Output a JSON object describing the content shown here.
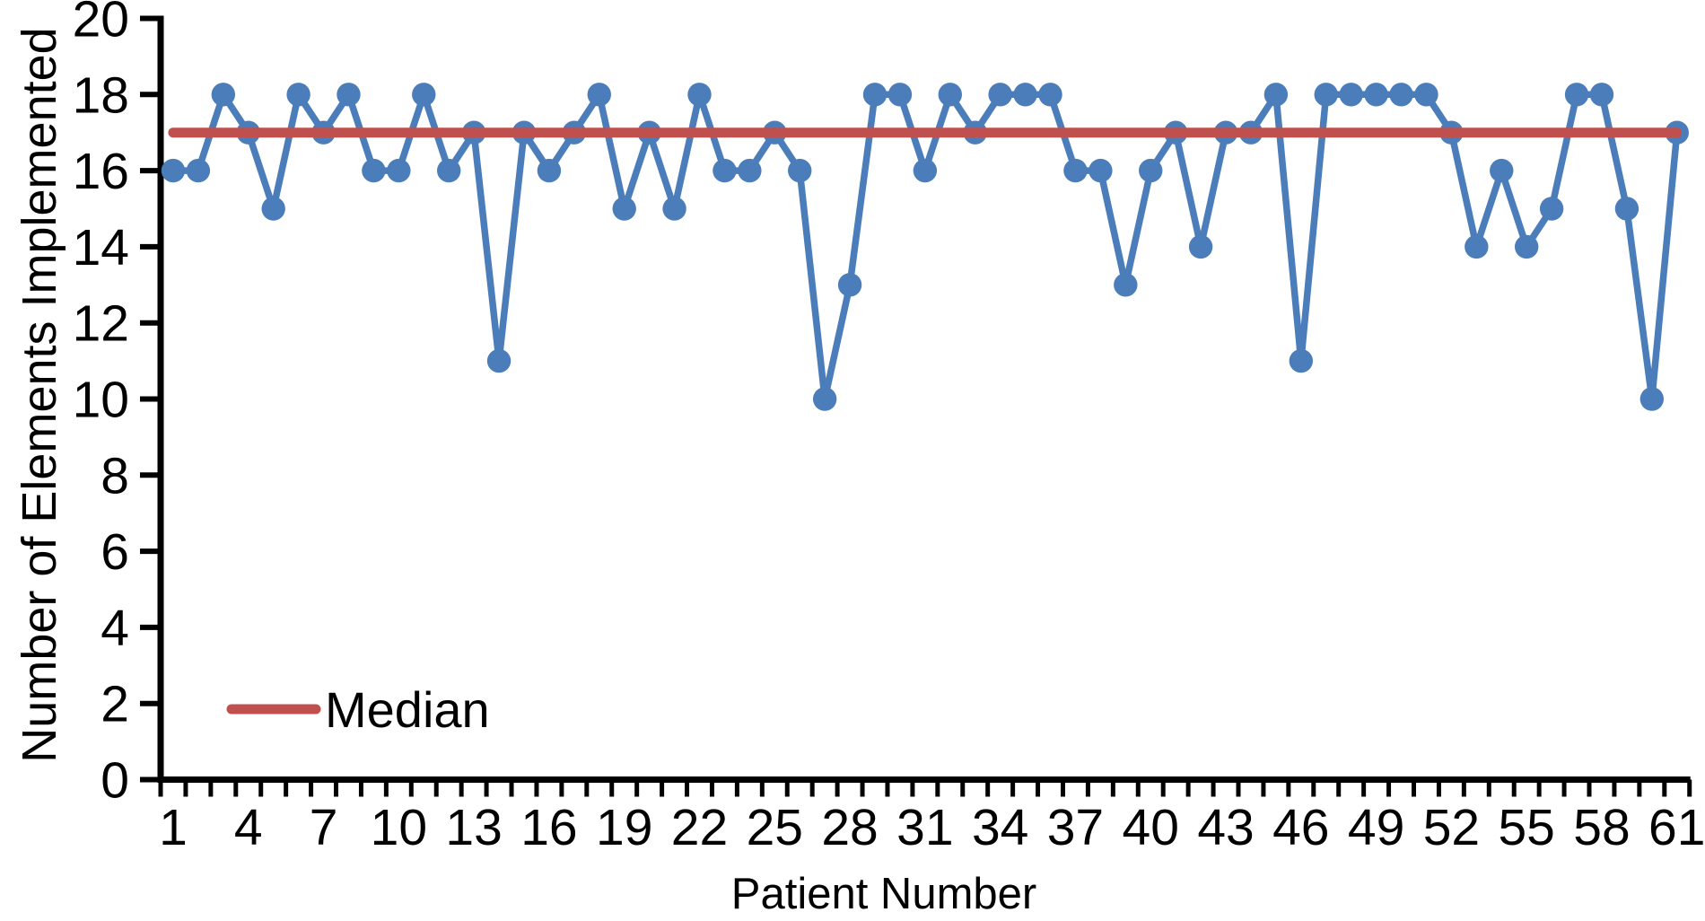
{
  "chart_data": {
    "type": "line",
    "title": "",
    "xlabel": "Patient Number",
    "ylabel": "Number of Elements Implemented",
    "categories": [
      1,
      2,
      3,
      4,
      5,
      6,
      7,
      8,
      9,
      10,
      11,
      12,
      13,
      14,
      15,
      16,
      17,
      18,
      19,
      20,
      21,
      22,
      23,
      24,
      25,
      26,
      27,
      28,
      29,
      30,
      31,
      32,
      33,
      34,
      35,
      36,
      37,
      38,
      39,
      40,
      41,
      42,
      43,
      44,
      45,
      46,
      47,
      48,
      49,
      50,
      51,
      52,
      53,
      54,
      55,
      56,
      57,
      58,
      59,
      60,
      61
    ],
    "series": [
      {
        "color": "#4a7db9",
        "marker": "circle",
        "values": [
          16,
          16,
          18,
          17,
          15,
          18,
          17,
          18,
          16,
          16,
          18,
          16,
          17,
          11,
          17,
          16,
          17,
          18,
          15,
          17,
          15,
          18,
          16,
          16,
          17,
          16,
          10,
          13,
          18,
          18,
          16,
          18,
          17,
          18,
          18,
          18,
          16,
          16,
          13,
          16,
          17,
          14,
          17,
          17,
          18,
          11,
          18,
          18,
          18,
          18,
          18,
          17,
          14,
          16,
          14,
          15,
          18,
          18,
          15,
          10,
          17
        ]
      }
    ],
    "median_line": {
      "label": "Median",
      "value": 17,
      "color": "#c0504d"
    },
    "ylim": [
      0,
      20
    ],
    "ytick_step": 2,
    "yticks": [
      0,
      2,
      4,
      6,
      8,
      10,
      12,
      14,
      16,
      18,
      20
    ],
    "xtick_labels": [
      1,
      4,
      7,
      10,
      13,
      16,
      19,
      22,
      25,
      28,
      31,
      34,
      37,
      40,
      43,
      46,
      49,
      52,
      55,
      58,
      61
    ],
    "grid": false,
    "legend": {
      "position": "inside-bottom-left",
      "entries": [
        "Median"
      ]
    }
  },
  "colors": {
    "background": "#ffffff",
    "axis": "#000000",
    "text": "#000000",
    "series_blue": "#4a7db9",
    "median_red": "#c0504d"
  }
}
